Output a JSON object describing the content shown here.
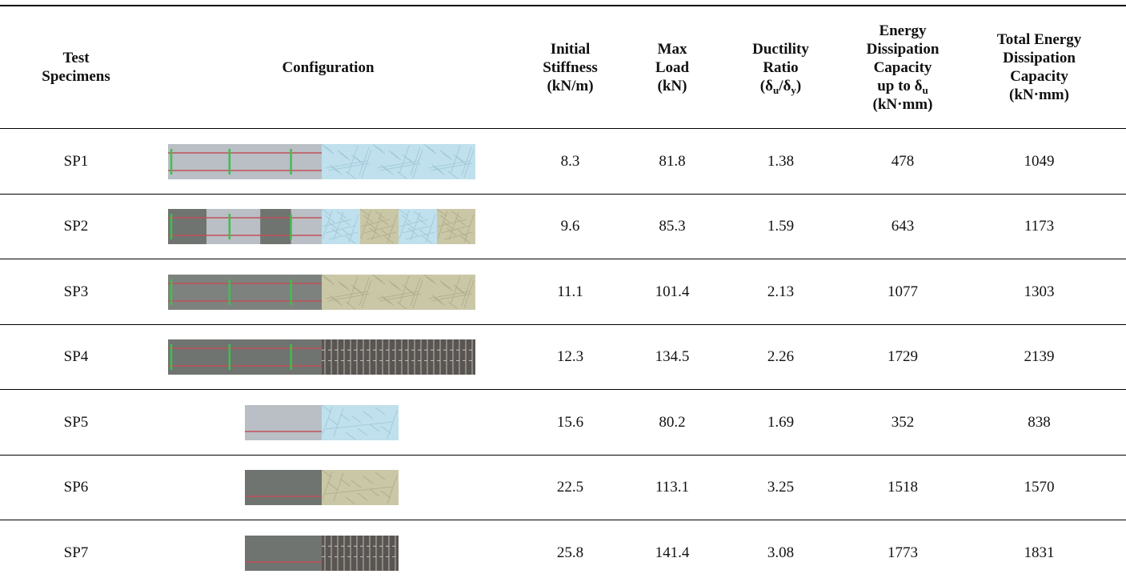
{
  "table": {
    "header": [
      {
        "lines": [
          "Test",
          "Specimens"
        ]
      },
      {
        "lines": [
          "Configuration"
        ]
      },
      {
        "lines": [
          "Initial",
          "Stiffness",
          "(kN/m)"
        ]
      },
      {
        "lines": [
          "Max",
          "Load",
          "(kN)"
        ]
      },
      {
        "lines": [
          "Ductility",
          "Ratio",
          [
            "(δ",
            "u",
            "/δ",
            "y",
            ")"
          ]
        ]
      },
      {
        "lines": [
          "Energy",
          "Dissipation",
          "Capacity",
          [
            "up to δ",
            "u"
          ],
          "(kN·mm)"
        ]
      },
      {
        "lines": [
          "Total Energy",
          "Dissipation",
          "Capacity",
          "(kN·mm)"
        ]
      }
    ],
    "rows": [
      [
        "SP1",
        8.3,
        81.8,
        1.38,
        478,
        1049
      ],
      [
        "SP2",
        9.6,
        85.3,
        1.59,
        643,
        1173
      ],
      [
        "SP3",
        11.1,
        101.4,
        2.13,
        1077,
        1303
      ],
      [
        "SP4",
        12.3,
        134.5,
        2.26,
        1729,
        2139
      ],
      [
        "SP5",
        15.6,
        80.2,
        1.69,
        352,
        838
      ],
      [
        "SP6",
        22.5,
        113.1,
        3.25,
        1518,
        1570
      ],
      [
        "SP7",
        25.8,
        141.4,
        3.08,
        1773,
        1831
      ]
    ]
  }
}
